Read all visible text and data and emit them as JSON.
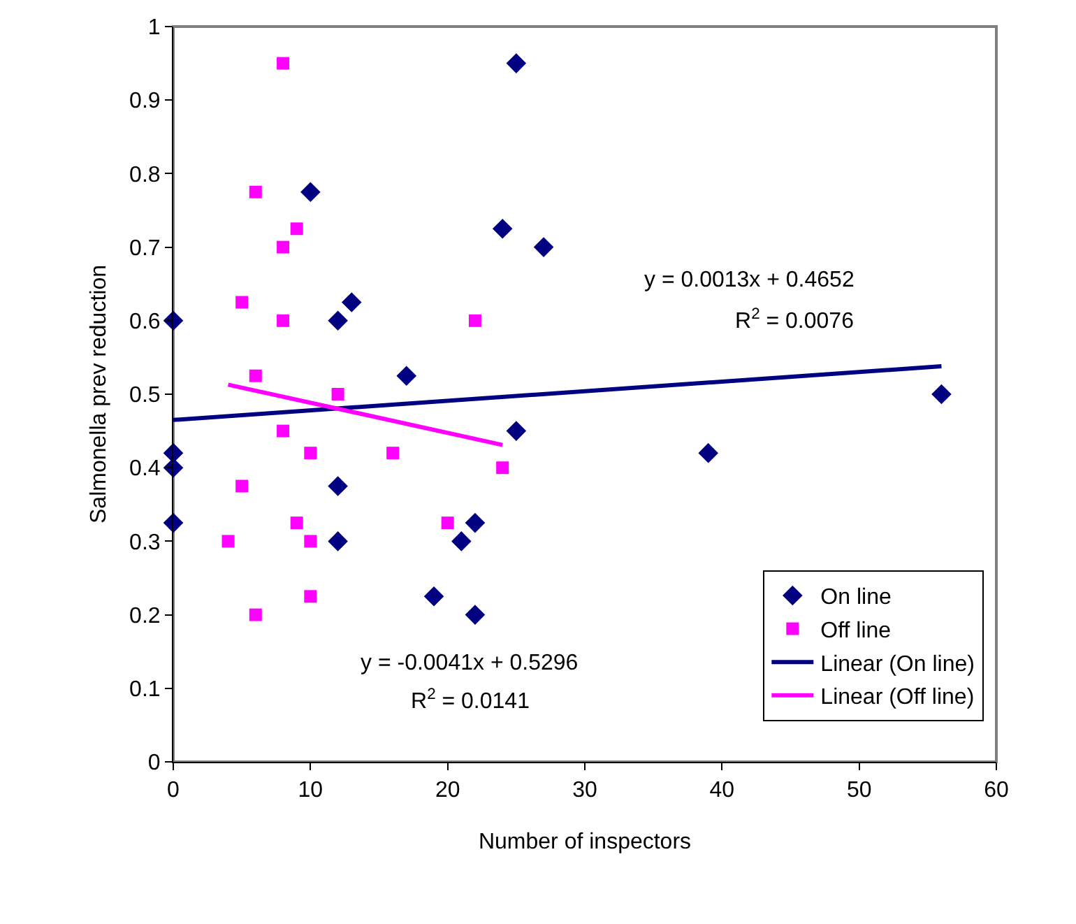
{
  "chart_data": {
    "type": "scatter",
    "xlabel": "Number of inspectors",
    "ylabel": "Salmonella prev reduction",
    "xlim": [
      0,
      60
    ],
    "xticks": [
      0,
      10,
      20,
      30,
      40,
      50,
      60
    ],
    "ylim": [
      0,
      1
    ],
    "yticks": [
      0,
      0.1,
      0.2,
      0.3,
      0.4,
      0.5,
      0.6,
      0.7,
      0.8,
      0.9,
      1
    ],
    "grid": false,
    "legend": "bottom right",
    "series": [
      {
        "name": "On line",
        "color": "#000080",
        "marker": "diamond",
        "x": [
          0,
          0,
          0,
          0,
          10,
          12,
          13,
          12,
          12,
          17,
          25,
          24,
          27,
          25,
          22,
          21,
          19,
          22,
          39,
          56
        ],
        "values": [
          0.6,
          0.42,
          0.4,
          0.325,
          0.775,
          0.6,
          0.625,
          0.375,
          0.3,
          0.525,
          0.95,
          0.725,
          0.7,
          0.45,
          0.325,
          0.3,
          0.225,
          0.2,
          0.42,
          0.5
        ]
      },
      {
        "name": "Off line",
        "color": "#ff00ff",
        "marker": "square",
        "x": [
          8,
          6,
          9,
          8,
          5,
          8,
          6,
          12,
          8,
          10,
          16,
          5,
          24,
          4,
          9,
          10,
          20,
          22,
          10,
          6
        ],
        "values": [
          0.95,
          0.775,
          0.725,
          0.7,
          0.625,
          0.6,
          0.525,
          0.5,
          0.45,
          0.42,
          0.42,
          0.375,
          0.4,
          0.3,
          0.325,
          0.3,
          0.325,
          0.6,
          0.225,
          0.2
        ]
      },
      {
        "name": "Linear (On line)",
        "type": "line",
        "color": "#000080",
        "marker": "none",
        "x": [
          0,
          56
        ],
        "values": [
          0.465,
          0.538
        ]
      },
      {
        "name": "Linear (Off line)",
        "type": "line",
        "color": "#ff00ff",
        "marker": "none",
        "x": [
          4,
          24
        ],
        "values": [
          0.513,
          0.431
        ]
      }
    ],
    "annotations": [
      "y = 0.0013x + 0.4652",
      "R$^{2}$ = 0.0076",
      "y = -0.0041x + 0.5296",
      "R$^{2}$ = 0.0141"
    ]
  }
}
